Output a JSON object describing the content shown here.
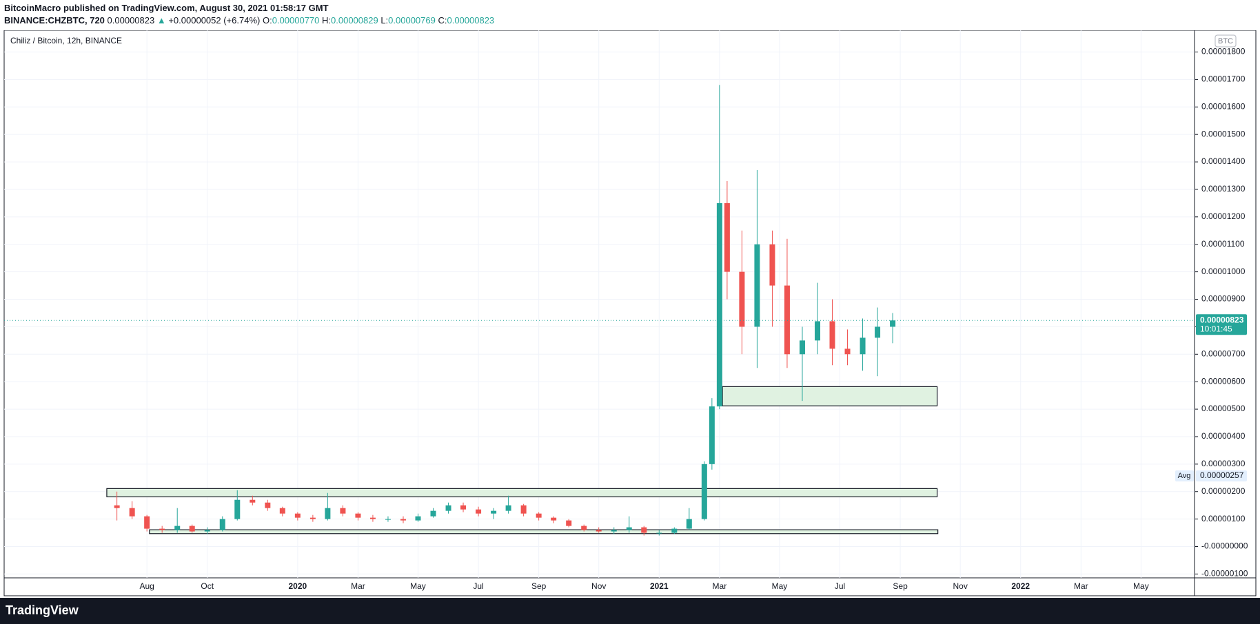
{
  "header": {
    "byline": "BitcoinMacro published on TradingView.com, August 30, 2021 01:58:17 GMT",
    "symbol": "BINANCE:CHZBTC, 720",
    "price": "0.00000823",
    "arrow": "▲",
    "change": "+0.00000052 (+6.74%)",
    "o_label": "O:",
    "o": "0.00000770",
    "h_label": "H:",
    "h": "0.00000829",
    "l_label": "L:",
    "l": "0.00000769",
    "c_label": "C:",
    "c": "0.00000823"
  },
  "footer": {
    "logo": "TradingView"
  },
  "chart_data": {
    "type": "candlestick",
    "title": "Chiliz / Bitcoin, 12h, BINANCE",
    "currency": "BTC",
    "up_color": "#26a69a",
    "down_color": "#ef5350",
    "grid": true,
    "xlim": [
      2019.188,
      2022.481
    ],
    "ylim": [
      -1.14e-06,
      1.879e-05
    ],
    "xticks": [
      {
        "value": 2019.583,
        "label": "Aug"
      },
      {
        "value": 2019.75,
        "label": "Oct"
      },
      2020,
      {
        "value": 2020.167,
        "label": "Mar"
      },
      {
        "value": 2020.333,
        "label": "May"
      },
      {
        "value": 2020.5,
        "label": "Jul"
      },
      {
        "value": 2020.667,
        "label": "Sep"
      },
      {
        "value": 2020.833,
        "label": "Nov"
      },
      2021,
      {
        "value": 2021.167,
        "label": "Mar"
      },
      {
        "value": 2021.333,
        "label": "May"
      },
      {
        "value": 2021.5,
        "label": "Jul"
      },
      {
        "value": 2021.667,
        "label": "Sep"
      },
      {
        "value": 2021.833,
        "label": "Nov"
      },
      2022,
      {
        "value": 2022.167,
        "label": "Mar"
      },
      {
        "value": 2022.333,
        "label": "May"
      }
    ],
    "yticks": [
      {
        "value": 1.8e-05,
        "label": "0.00001800"
      },
      {
        "value": 1.7e-05,
        "label": "0.00001700"
      },
      {
        "value": 1.6e-05,
        "label": "0.00001600"
      },
      {
        "value": 1.5e-05,
        "label": "0.00001500"
      },
      {
        "value": 1.4e-05,
        "label": "0.00001400"
      },
      {
        "value": 1.3e-05,
        "label": "0.00001300"
      },
      {
        "value": 1.2e-05,
        "label": "0.00001200"
      },
      {
        "value": 1.1e-05,
        "label": "0.00001100"
      },
      {
        "value": 1e-05,
        "label": "0.00001000"
      },
      {
        "value": 9e-06,
        "label": "0.00000900"
      },
      {
        "value": 8e-06,
        "label": "0.00000800"
      },
      {
        "value": 7e-06,
        "label": "0.00000700"
      },
      {
        "value": 6e-06,
        "label": "0.00000600"
      },
      {
        "value": 5e-06,
        "label": "0.00000500"
      },
      {
        "value": 4e-06,
        "label": "0.00000400"
      },
      {
        "value": 3e-06,
        "label": "0.00000300"
      },
      {
        "value": 2e-06,
        "label": "0.00000200"
      },
      {
        "value": 1e-06,
        "label": "0.00000100"
      },
      {
        "value": 0,
        "label": "-0.00000000"
      },
      {
        "value": -1e-06,
        "label": "-0.00000100"
      }
    ],
    "x": [
      2019.5,
      2019.542,
      2019.583,
      2019.625,
      2019.667,
      2019.708,
      2019.75,
      2019.792,
      2019.833,
      2019.875,
      2019.917,
      2019.958,
      2020.0,
      2020.042,
      2020.083,
      2020.125,
      2020.167,
      2020.208,
      2020.25,
      2020.292,
      2020.333,
      2020.375,
      2020.417,
      2020.458,
      2020.5,
      2020.542,
      2020.583,
      2020.625,
      2020.667,
      2020.708,
      2020.75,
      2020.792,
      2020.833,
      2020.875,
      2020.917,
      2020.958,
      2021.0,
      2021.042,
      2021.083,
      2021.125,
      2021.146,
      2021.167,
      2021.188,
      2021.229,
      2021.271,
      2021.313,
      2021.354,
      2021.396,
      2021.438,
      2021.479,
      2021.521,
      2021.563,
      2021.604,
      2021.646
    ],
    "open": [
      1.5e-06,
      1.4e-06,
      1.1e-06,
      6.5e-07,
      6e-07,
      7.5e-07,
      5.5e-07,
      6e-07,
      1e-06,
      1.7e-06,
      1.6e-06,
      1.4e-06,
      1.2e-06,
      1.05e-06,
      1e-06,
      1.4e-06,
      1.2e-06,
      1.05e-06,
      1e-06,
      1e-06,
      9.5e-07,
      1.1e-06,
      1.3e-06,
      1.5e-06,
      1.35e-06,
      1.2e-06,
      1.3e-06,
      1.5e-06,
      1.2e-06,
      1.05e-06,
      9.5e-07,
      7.5e-07,
      6e-07,
      5.5e-07,
      6e-07,
      7e-07,
      5e-07,
      5e-07,
      6.5e-07,
      1e-06,
      3e-06,
      5.1e-06,
      1.25e-05,
      1e-05,
      8e-06,
      1.1e-05,
      9.5e-06,
      7e-06,
      7.5e-06,
      8.2e-06,
      7.2e-06,
      7e-06,
      7.6e-06,
      8e-06
    ],
    "high": [
      2e-06,
      1.65e-06,
      1.15e-06,
      7.5e-07,
      1.4e-06,
      8e-07,
      7e-07,
      1.1e-06,
      2.05e-06,
      1.85e-06,
      1.7e-06,
      1.45e-06,
      1.25e-06,
      1.15e-06,
      1.95e-06,
      1.5e-06,
      1.25e-06,
      1.15e-06,
      1.1e-06,
      1.1e-06,
      1.2e-06,
      1.4e-06,
      1.6e-06,
      1.6e-06,
      1.45e-06,
      1.4e-06,
      1.85e-06,
      1.55e-06,
      1.25e-06,
      1.1e-06,
      1e-06,
      8e-07,
      7e-07,
      7e-07,
      1.1e-06,
      7.5e-07,
      6e-07,
      7e-07,
      1.4e-06,
      3.1e-06,
      5.4e-06,
      1.68e-05,
      1.33e-05,
      1.15e-05,
      1.37e-05,
      1.15e-05,
      1.12e-05,
      8e-06,
      9.6e-06,
      9e-06,
      7.9e-06,
      8.3e-06,
      8.7e-06,
      8.5e-06
    ],
    "low": [
      9.5e-07,
      1e-06,
      5.5e-07,
      5e-07,
      5e-07,
      5e-07,
      4.5e-07,
      5.5e-07,
      9.5e-07,
      1.5e-06,
      1.3e-06,
      1.1e-06,
      9.5e-07,
      9e-07,
      9.5e-07,
      1.1e-06,
      9.5e-07,
      9e-07,
      9e-07,
      8.5e-07,
      9e-07,
      1.05e-06,
      1.2e-06,
      1.25e-06,
      1.1e-06,
      1e-06,
      1.2e-06,
      1.1e-06,
      9.5e-07,
      8.5e-07,
      7e-07,
      5.5e-07,
      5e-07,
      4.5e-07,
      5e-07,
      4e-07,
      4e-07,
      4.5e-07,
      6e-07,
      9.5e-07,
      2.8e-06,
      5e-06,
      9e-06,
      7e-06,
      6.5e-06,
      8e-06,
      6.5e-06,
      5.3e-06,
      7e-06,
      6.6e-06,
      6.6e-06,
      6.4e-06,
      6.2e-06,
      7.4e-06
    ],
    "close": [
      1.4e-06,
      1.1e-06,
      6.5e-07,
      6e-07,
      7.5e-07,
      5.5e-07,
      6e-07,
      1e-06,
      1.7e-06,
      1.6e-06,
      1.4e-06,
      1.2e-06,
      1.05e-06,
      1e-06,
      1.4e-06,
      1.2e-06,
      1.05e-06,
      1e-06,
      1e-06,
      9.5e-07,
      1.1e-06,
      1.3e-06,
      1.5e-06,
      1.35e-06,
      1.2e-06,
      1.3e-06,
      1.5e-06,
      1.2e-06,
      1.05e-06,
      9.5e-07,
      7.5e-07,
      6e-07,
      5.5e-07,
      6e-07,
      7e-07,
      5e-07,
      5e-07,
      6.5e-07,
      1e-06,
      3e-06,
      5.1e-06,
      1.25e-05,
      1e-05,
      8e-06,
      1.1e-05,
      9.5e-06,
      7e-06,
      7.5e-06,
      8.2e-06,
      7.2e-06,
      7e-06,
      7.6e-06,
      8e-06,
      8.23e-06
    ],
    "rectangles": [
      {
        "x": [
          2021.175,
          2021.769
        ],
        "y": [
          5.12e-06,
          5.82e-06
        ]
      },
      {
        "x": [
          2019.472,
          2021.769
        ],
        "y": [
          1.81e-06,
          2.11e-06
        ]
      },
      {
        "x": [
          2019.59,
          2021.771
        ],
        "y": [
          4.7e-07,
          6.1e-07
        ]
      }
    ],
    "rect_color": "#e0f2e1",
    "last": {
      "value": 8.23e-06,
      "label": "0.00000823",
      "countdown": "10:01:45"
    },
    "avg": {
      "value": 2.57e-06,
      "label": "0.00000257",
      "tag": "Avg"
    }
  }
}
